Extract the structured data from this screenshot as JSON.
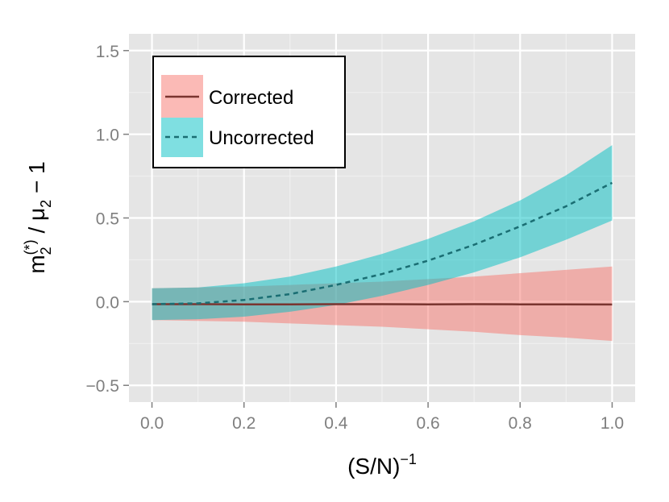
{
  "chart_data": {
    "type": "area",
    "title": "",
    "xlabel": {
      "base": "(S/N)",
      "superscript": "−1"
    },
    "ylabel": {
      "m": "m",
      "m_sub": "2",
      "m_sup": "(*)",
      "slash": " / ",
      "mu": "μ",
      "mu_sub": "2",
      "tail": " − 1"
    },
    "xlim": [
      -0.05,
      1.05
    ],
    "ylim": [
      -0.6,
      1.6
    ],
    "x_ticks": [
      0.0,
      0.2,
      0.4,
      0.6,
      0.8,
      1.0
    ],
    "x_tick_labels": [
      "0.0",
      "0.2",
      "0.4",
      "0.6",
      "0.8",
      "1.0"
    ],
    "y_ticks": [
      -0.5,
      0.0,
      0.5,
      1.0,
      1.5
    ],
    "y_tick_labels": [
      "−0.5",
      "0.0",
      "0.5",
      "1.0",
      "1.5"
    ],
    "grid": true,
    "legend_position": "top-left",
    "x": [
      0.0,
      0.1,
      0.2,
      0.3,
      0.4,
      0.5,
      0.6,
      0.7,
      0.8,
      0.9,
      1.0
    ],
    "series": [
      {
        "name": "Corrected",
        "line_style": "solid",
        "line_color": "#7a3530",
        "fill_color": "#f8766d",
        "mean": [
          -0.015,
          -0.015,
          -0.016,
          -0.016,
          -0.015,
          -0.015,
          -0.016,
          -0.015,
          -0.016,
          -0.016,
          -0.017
        ],
        "lower": [
          -0.11,
          -0.115,
          -0.12,
          -0.13,
          -0.14,
          -0.15,
          -0.165,
          -0.18,
          -0.2,
          -0.215,
          -0.235
        ],
        "upper": [
          0.08,
          0.085,
          0.09,
          0.1,
          0.11,
          0.12,
          0.135,
          0.15,
          0.17,
          0.19,
          0.21
        ]
      },
      {
        "name": "Uncorrected",
        "line_style": "dashed",
        "line_color": "#1a6e73",
        "fill_color": "#00bfc4",
        "mean": [
          -0.015,
          -0.01,
          0.01,
          0.045,
          0.1,
          0.165,
          0.245,
          0.34,
          0.45,
          0.57,
          0.71
        ],
        "lower": [
          -0.11,
          -0.105,
          -0.09,
          -0.06,
          -0.02,
          0.035,
          0.1,
          0.175,
          0.265,
          0.37,
          0.485
        ],
        "upper": [
          0.08,
          0.085,
          0.11,
          0.15,
          0.21,
          0.285,
          0.375,
          0.48,
          0.605,
          0.755,
          0.935
        ]
      }
    ]
  }
}
